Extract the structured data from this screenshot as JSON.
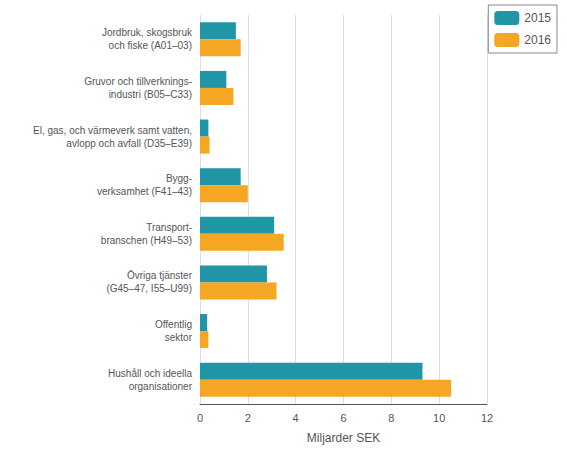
{
  "chart_data": {
    "type": "bar",
    "orientation": "horizontal",
    "categories": [
      "Jordbruk, skogsbruk\noch fiske (A01–03)",
      "Gruvor och tillverknings-\nindustri (B05–C33)",
      "El, gas, och värmeverk samt vatten,\navlopp och avfall (D35–E39)",
      "Bygg-\nverksamhet (F41–43)",
      "Transport-\nbranschen (H49–53)",
      "Övriga tjänster\n(G45–47, I55–U99)",
      "Offentlig\nsektor",
      "Hushåll och ideella\norganisationer"
    ],
    "series": [
      {
        "name": "2015",
        "color": "#2196A6",
        "values": [
          1.5,
          1.1,
          0.35,
          1.7,
          3.1,
          2.8,
          0.3,
          9.3
        ]
      },
      {
        "name": "2016",
        "color": "#F5A623",
        "values": [
          1.7,
          1.4,
          0.4,
          2.0,
          3.5,
          3.2,
          0.35,
          10.5
        ]
      }
    ],
    "xlabel": "Miljarder SEK",
    "xlim": [
      0,
      12
    ],
    "xticks": [
      0,
      2,
      4,
      6,
      8,
      10,
      12
    ],
    "grid": true,
    "legend": "upper right"
  }
}
